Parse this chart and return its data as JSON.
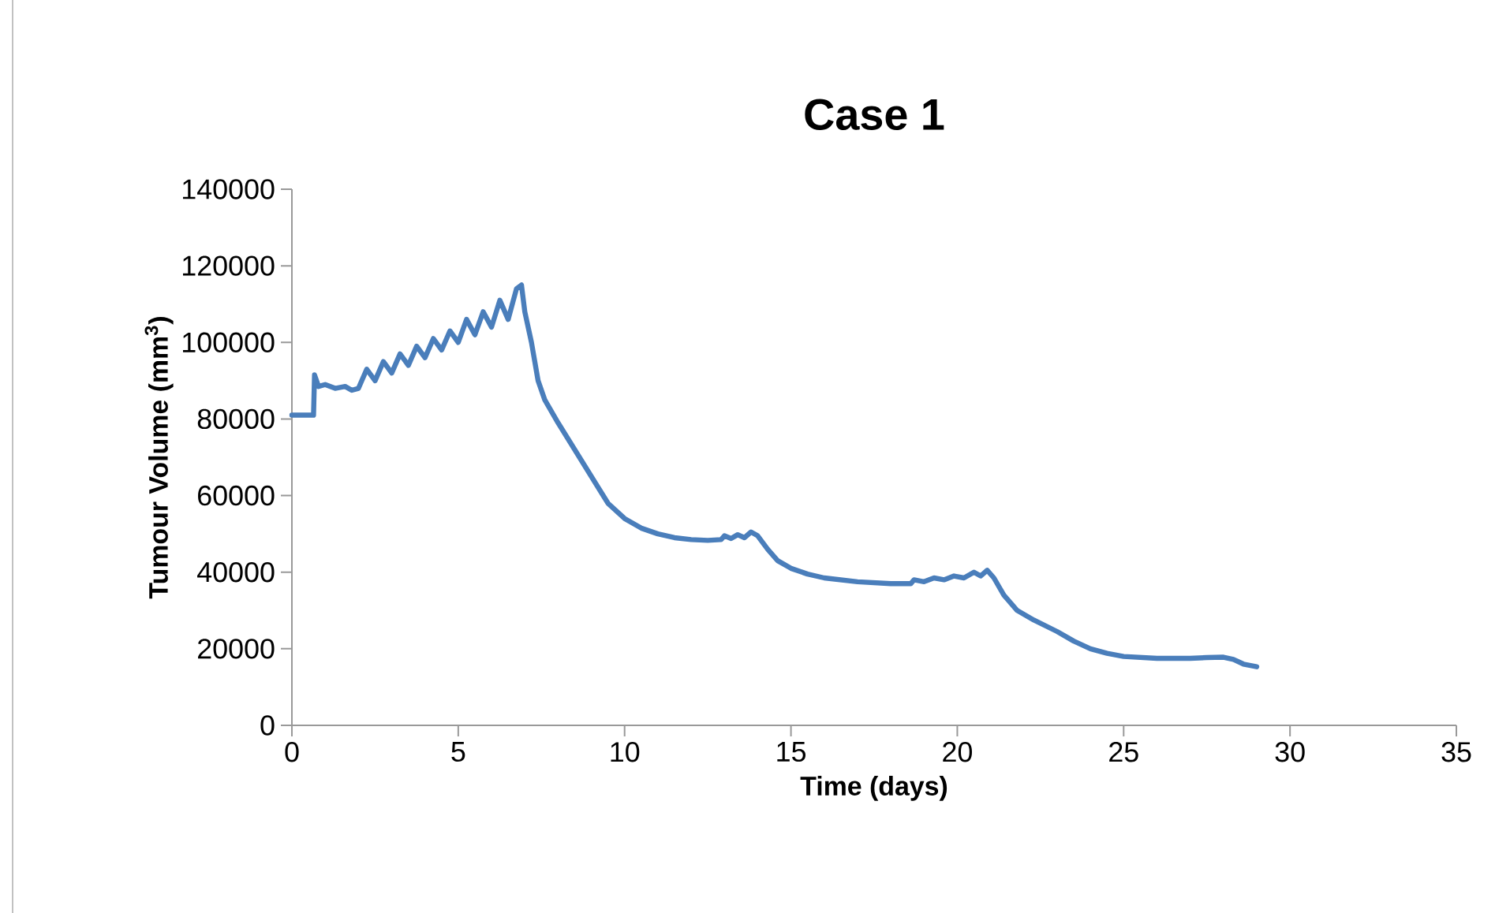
{
  "chart_data": {
    "type": "line",
    "title": "Case 1",
    "xlabel": "Time (days)",
    "ylabel": "Tumour Volume (mm$^{3}$)",
    "xlim": [
      0,
      35
    ],
    "xticks": [
      0,
      5,
      10,
      15,
      20,
      25,
      30,
      35
    ],
    "ylim": [
      0,
      140000
    ],
    "yticks": [
      0,
      20000,
      40000,
      60000,
      80000,
      100000,
      120000,
      140000
    ],
    "series": [
      {
        "color": "#4a7ebb",
        "x": [
          0,
          0.65,
          0.68,
          0.8,
          1.0,
          1.3,
          1.6,
          1.8,
          2.0,
          2.25,
          2.5,
          2.75,
          3.0,
          3.25,
          3.5,
          3.75,
          4.0,
          4.25,
          4.5,
          4.75,
          5.0,
          5.25,
          5.5,
          5.75,
          6.0,
          6.25,
          6.5,
          6.75,
          6.9,
          7.0,
          7.2,
          7.4,
          7.6,
          8.0,
          8.5,
          9.0,
          9.5,
          10,
          10.5,
          11,
          11.5,
          12,
          12.5,
          12.9,
          13.0,
          13.2,
          13.4,
          13.6,
          13.8,
          14.0,
          14.3,
          14.6,
          15,
          15.5,
          16,
          17,
          18,
          18.6,
          18.7,
          19,
          19.3,
          19.6,
          19.9,
          20.2,
          20.5,
          20.7,
          20.9,
          21.1,
          21.4,
          21.8,
          22.3,
          23,
          23.5,
          24,
          24.5,
          25,
          26,
          27,
          27.5,
          28,
          28.3,
          28.6,
          29
        ],
        "values": [
          81000,
          81000,
          91500,
          88500,
          89000,
          88000,
          88500,
          87500,
          88000,
          93000,
          90000,
          95000,
          92000,
          97000,
          94000,
          99000,
          96000,
          101000,
          98000,
          103000,
          100000,
          106000,
          102000,
          108000,
          104000,
          111000,
          106000,
          114000,
          115000,
          108000,
          100000,
          90000,
          85000,
          79000,
          72000,
          65000,
          58000,
          54000,
          51500,
          50000,
          49000,
          48500,
          48300,
          48500,
          49500,
          48800,
          49800,
          49000,
          50500,
          49500,
          46000,
          43000,
          41000,
          39500,
          38500,
          37500,
          37000,
          37000,
          38000,
          37500,
          38500,
          38000,
          39000,
          38500,
          40000,
          39000,
          40500,
          38500,
          34000,
          30000,
          27500,
          24500,
          22000,
          20000,
          18800,
          18000,
          17500,
          17500,
          17700,
          17800,
          17200,
          16000,
          15300
        ]
      }
    ]
  }
}
